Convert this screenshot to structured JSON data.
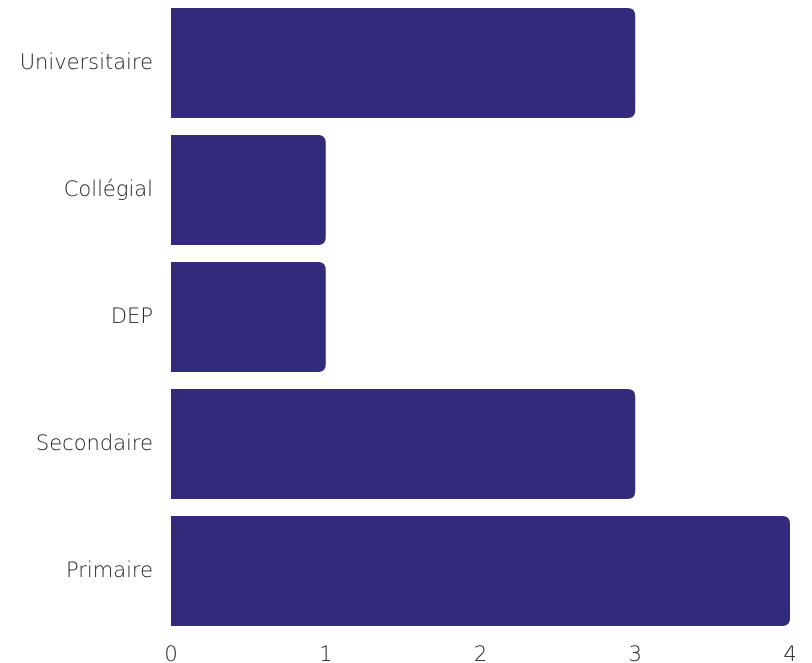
{
  "chart_data": {
    "type": "barh",
    "categories": [
      "Universitaire",
      "Collégial",
      "DEP",
      "Secondaire",
      "Primaire"
    ],
    "values": [
      3,
      1,
      1,
      3,
      4
    ],
    "color": "#332a7c",
    "xlim": [
      0,
      4
    ],
    "xticks": [
      0,
      1,
      2,
      3,
      4
    ],
    "grid": false
  }
}
